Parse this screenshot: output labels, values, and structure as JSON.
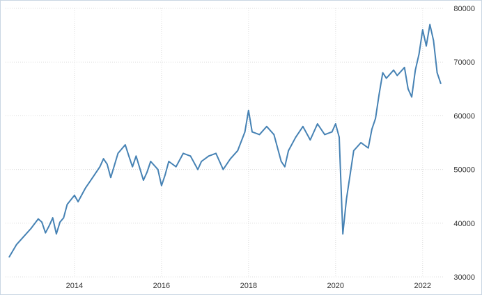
{
  "chart_data": {
    "type": "line",
    "title": "",
    "xlabel": "",
    "ylabel": "",
    "x_ticks": [
      "2014",
      "2016",
      "2018",
      "2020",
      "2022"
    ],
    "y_ticks": [
      "80000",
      "70000",
      "60000",
      "50000",
      "40000",
      "30000"
    ],
    "ylim": [
      30000,
      80000
    ],
    "xlim": [
      "2012-06",
      "2022-07"
    ],
    "grid": true,
    "y_axis_side": "right",
    "line_color": "#4682b4",
    "series": [
      {
        "x": [
          "2012-07",
          "2012-09",
          "2012-11",
          "2013-01",
          "2013-03",
          "2013-04",
          "2013-05",
          "2013-06",
          "2013-07",
          "2013-08",
          "2013-09",
          "2013-10",
          "2013-11",
          "2014-01",
          "2014-02",
          "2014-04",
          "2014-06",
          "2014-08",
          "2014-09",
          "2014-10",
          "2014-11",
          "2015-01",
          "2015-03",
          "2015-04",
          "2015-05",
          "2015-06",
          "2015-08",
          "2015-09",
          "2015-10",
          "2015-12",
          "2016-01",
          "2016-02",
          "2016-03",
          "2016-05",
          "2016-07",
          "2016-09",
          "2016-11",
          "2016-12",
          "2017-02",
          "2017-04",
          "2017-06",
          "2017-08",
          "2017-10",
          "2017-12",
          "2018-01",
          "2018-02",
          "2018-04",
          "2018-06",
          "2018-08",
          "2018-10",
          "2018-11",
          "2018-12",
          "2019-02",
          "2019-04",
          "2019-06",
          "2019-08",
          "2019-10",
          "2019-12",
          "2020-01",
          "2020-02",
          "2020-03",
          "2020-04",
          "2020-06",
          "2020-08",
          "2020-10",
          "2020-11",
          "2020-12",
          "2021-01",
          "2021-02",
          "2021-03",
          "2021-05",
          "2021-06",
          "2021-08",
          "2021-09",
          "2021-10",
          "2021-11",
          "2021-12",
          "2022-01",
          "2022-02",
          "2022-03",
          "2022-04",
          "2022-05",
          "2022-06"
        ],
        "values": [
          33700,
          36000,
          37500,
          39000,
          40800,
          40200,
          38200,
          39500,
          41000,
          38000,
          40200,
          41000,
          43500,
          45200,
          44000,
          46500,
          48500,
          50500,
          52000,
          51000,
          48500,
          53000,
          54600,
          52500,
          50500,
          52500,
          48000,
          49500,
          51500,
          50000,
          47000,
          49000,
          51500,
          50500,
          53000,
          52500,
          50000,
          51500,
          52500,
          53000,
          50000,
          52000,
          53500,
          57000,
          61000,
          57000,
          56500,
          58000,
          56500,
          51500,
          50500,
          53500,
          56000,
          58000,
          55500,
          58500,
          56500,
          57000,
          58500,
          56000,
          38000,
          44500,
          53500,
          55000,
          54000,
          57500,
          59500,
          64000,
          68000,
          67000,
          68500,
          67500,
          69000,
          65000,
          63500,
          68500,
          71500,
          76000,
          73000,
          77000,
          74000,
          68000,
          66000
        ]
      }
    ]
  }
}
